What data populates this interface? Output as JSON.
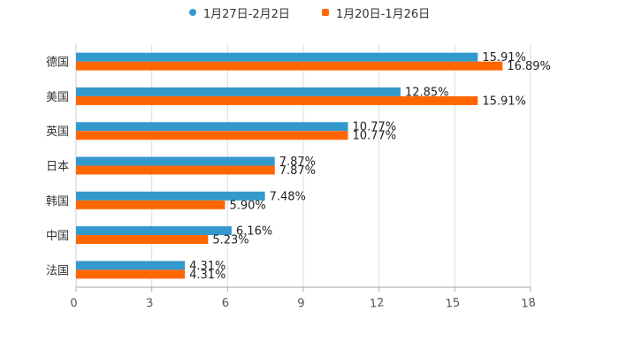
{
  "chart_data": {
    "type": "bar",
    "orientation": "horizontal",
    "categories": [
      "德国",
      "美国",
      "英国",
      "日本",
      "韩国",
      "中国",
      "法国"
    ],
    "series": [
      {
        "name": "1月27日-2月2日",
        "color": "#3399cc",
        "marker": "circle",
        "values": [
          15.91,
          12.85,
          10.77,
          7.87,
          7.48,
          6.16,
          4.31
        ],
        "labels": [
          "15.91%",
          "12.85%",
          "10.77%",
          "7.87%",
          "7.48%",
          "6.16%",
          "4.31%"
        ]
      },
      {
        "name": "1月20日-1月26日",
        "color": "#ff6600",
        "marker": "square",
        "values": [
          16.89,
          15.91,
          10.77,
          7.87,
          5.9,
          5.23,
          4.31
        ],
        "labels": [
          "16.89%",
          "15.91%",
          "10.77%",
          "7.87%",
          "5.90%",
          "5.23%",
          "4.31%"
        ]
      }
    ],
    "xlim": [
      0,
      18
    ],
    "xticks": [
      "0",
      "3",
      "6",
      "9",
      "12",
      "15",
      "18"
    ],
    "grid": true,
    "legend_position": "top-center",
    "title": "",
    "xlabel": "",
    "ylabel": ""
  }
}
